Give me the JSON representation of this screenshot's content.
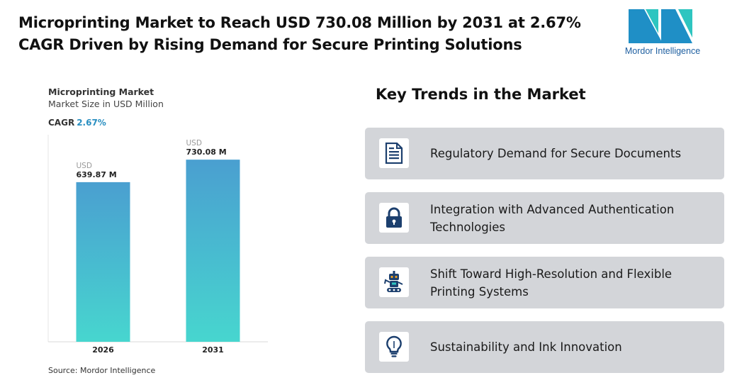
{
  "headline": {
    "line1": "Microprinting Market to Reach USD 730.08 Million by 2031 at 2.67%",
    "line2": "CAGR Driven by Rising Demand for Secure Printing Solutions"
  },
  "logo": {
    "text": "Mordor Intelligence"
  },
  "chart_data": {
    "type": "bar",
    "title": "Microprinting Market",
    "subtitle": "Market Size in USD Million",
    "cagr_label": "CAGR",
    "cagr_value": "2.67%",
    "categories": [
      "2026",
      "2031"
    ],
    "values": [
      639.87,
      730.08
    ],
    "value_prefix": "USD",
    "value_labels": [
      "639.87 M",
      "730.08 M"
    ],
    "ylim": [
      0,
      830
    ],
    "colors": {
      "bar_top": "#4a9fd0",
      "bar_bottom": "#47d6cf"
    }
  },
  "source": "Source: Mordor Intelligence",
  "trends": {
    "title": "Key Trends in the Market",
    "items": [
      {
        "label": "Regulatory Demand for Secure Documents",
        "icon": "document-icon"
      },
      {
        "label": "Integration with Advanced Authentication Technologies",
        "icon": "lock-icon"
      },
      {
        "label": "Shift Toward High-Resolution and Flexible Printing Systems",
        "icon": "robot-icon"
      },
      {
        "label": "Sustainability and Ink Innovation",
        "icon": "lightbulb-icon"
      }
    ]
  },
  "colors": {
    "accent": "#2a8fc1",
    "card_bg": "#d3d5d9",
    "icon_navy": "#1c3f6e"
  }
}
